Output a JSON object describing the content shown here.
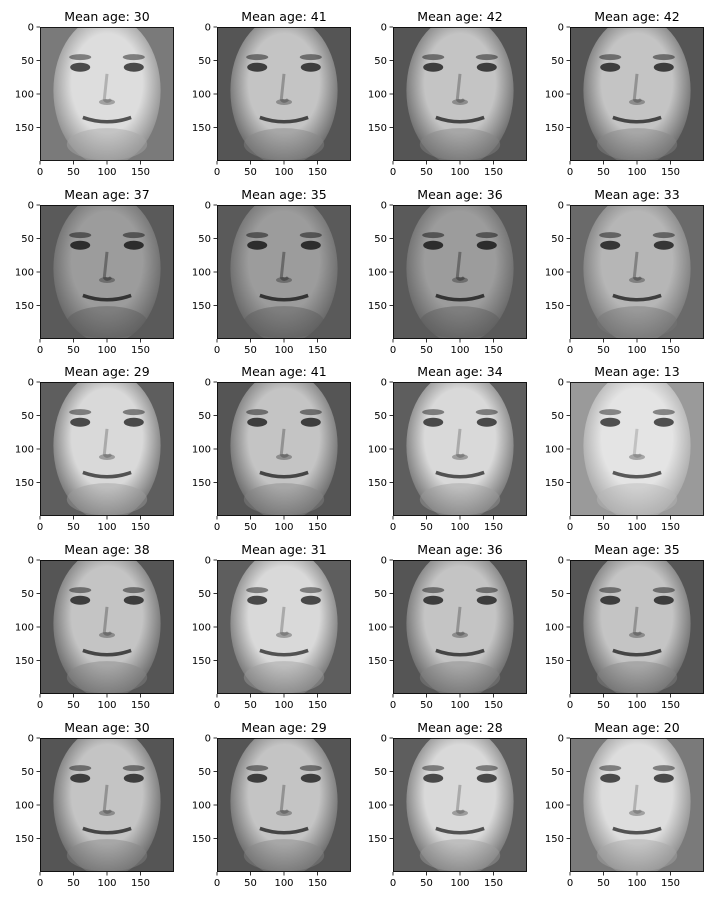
{
  "figure_title": "",
  "chart_data": [
    {
      "type": "image",
      "title": "Mean age: 30",
      "value": 30,
      "tone": "light-smile",
      "xticks": [
        0,
        50,
        100,
        150
      ],
      "yticks": [
        0,
        50,
        100,
        150
      ],
      "xlim": [
        0,
        200
      ],
      "ylim": [
        200,
        0
      ],
      "xlabel": "",
      "ylabel": "",
      "grid": false
    },
    {
      "type": "image",
      "title": "Mean age: 41",
      "value": 41,
      "tone": "mid",
      "xticks": [
        0,
        50,
        100,
        150
      ],
      "yticks": [
        0,
        50,
        100,
        150
      ],
      "xlim": [
        0,
        200
      ],
      "ylim": [
        200,
        0
      ],
      "xlabel": "",
      "ylabel": "",
      "grid": false
    },
    {
      "type": "image",
      "title": "Mean age: 42",
      "value": 42,
      "tone": "mid",
      "xticks": [
        0,
        50,
        100,
        150
      ],
      "yticks": [
        0,
        50,
        100,
        150
      ],
      "xlim": [
        0,
        200
      ],
      "ylim": [
        200,
        0
      ],
      "xlabel": "",
      "ylabel": "",
      "grid": false
    },
    {
      "type": "image",
      "title": "Mean age: 42",
      "value": 42,
      "tone": "mid",
      "xticks": [
        0,
        50,
        100,
        150
      ],
      "yticks": [
        0,
        50,
        100,
        150
      ],
      "xlim": [
        0,
        200
      ],
      "ylim": [
        200,
        0
      ],
      "xlabel": "",
      "ylabel": "",
      "grid": false
    },
    {
      "type": "image",
      "title": "Mean age: 37",
      "value": 37,
      "tone": "dark",
      "xticks": [
        0,
        50,
        100,
        150
      ],
      "yticks": [
        0,
        50,
        100,
        150
      ],
      "xlim": [
        0,
        200
      ],
      "ylim": [
        200,
        0
      ],
      "xlabel": "",
      "ylabel": "",
      "grid": false
    },
    {
      "type": "image",
      "title": "Mean age: 35",
      "value": 35,
      "tone": "dark",
      "xticks": [
        0,
        50,
        100,
        150
      ],
      "yticks": [
        0,
        50,
        100,
        150
      ],
      "xlim": [
        0,
        200
      ],
      "ylim": [
        200,
        0
      ],
      "xlabel": "",
      "ylabel": "",
      "grid": false
    },
    {
      "type": "image",
      "title": "Mean age: 36",
      "value": 36,
      "tone": "dark",
      "xticks": [
        0,
        50,
        100,
        150
      ],
      "yticks": [
        0,
        50,
        100,
        150
      ],
      "xlim": [
        0,
        200
      ],
      "ylim": [
        200,
        0
      ],
      "xlabel": "",
      "ylabel": "",
      "grid": false
    },
    {
      "type": "image",
      "title": "Mean age: 33",
      "value": 33,
      "tone": "mid-dark",
      "xticks": [
        0,
        50,
        100,
        150
      ],
      "yticks": [
        0,
        50,
        100,
        150
      ],
      "xlim": [
        0,
        200
      ],
      "ylim": [
        200,
        0
      ],
      "xlabel": "",
      "ylabel": "",
      "grid": false
    },
    {
      "type": "image",
      "title": "Mean age: 29",
      "value": 29,
      "tone": "light",
      "xticks": [
        0,
        50,
        100,
        150
      ],
      "yticks": [
        0,
        50,
        100,
        150
      ],
      "xlim": [
        0,
        200
      ],
      "ylim": [
        200,
        0
      ],
      "xlabel": "",
      "ylabel": "",
      "grid": false
    },
    {
      "type": "image",
      "title": "Mean age: 41",
      "value": 41,
      "tone": "mid",
      "xticks": [
        0,
        50,
        100,
        150
      ],
      "yticks": [
        0,
        50,
        100,
        150
      ],
      "xlim": [
        0,
        200
      ],
      "ylim": [
        200,
        0
      ],
      "xlabel": "",
      "ylabel": "",
      "grid": false
    },
    {
      "type": "image",
      "title": "Mean age: 34",
      "value": 34,
      "tone": "light",
      "xticks": [
        0,
        50,
        100,
        150
      ],
      "yticks": [
        0,
        50,
        100,
        150
      ],
      "xlim": [
        0,
        200
      ],
      "ylim": [
        200,
        0
      ],
      "xlabel": "",
      "ylabel": "",
      "grid": false
    },
    {
      "type": "image",
      "title": "Mean age: 13",
      "value": 13,
      "tone": "very-light",
      "xticks": [
        0,
        50,
        100,
        150
      ],
      "yticks": [
        0,
        50,
        100,
        150
      ],
      "xlim": [
        0,
        200
      ],
      "ylim": [
        200,
        0
      ],
      "xlabel": "",
      "ylabel": "",
      "grid": false
    },
    {
      "type": "image",
      "title": "Mean age: 38",
      "value": 38,
      "tone": "mid",
      "xticks": [
        0,
        50,
        100,
        150
      ],
      "yticks": [
        0,
        50,
        100,
        150
      ],
      "xlim": [
        0,
        200
      ],
      "ylim": [
        200,
        0
      ],
      "xlabel": "",
      "ylabel": "",
      "grid": false
    },
    {
      "type": "image",
      "title": "Mean age: 31",
      "value": 31,
      "tone": "light",
      "xticks": [
        0,
        50,
        100,
        150
      ],
      "yticks": [
        0,
        50,
        100,
        150
      ],
      "xlim": [
        0,
        200
      ],
      "ylim": [
        200,
        0
      ],
      "xlabel": "",
      "ylabel": "",
      "grid": false
    },
    {
      "type": "image",
      "title": "Mean age: 36",
      "value": 36,
      "tone": "mid",
      "xticks": [
        0,
        50,
        100,
        150
      ],
      "yticks": [
        0,
        50,
        100,
        150
      ],
      "xlim": [
        0,
        200
      ],
      "ylim": [
        200,
        0
      ],
      "xlabel": "",
      "ylabel": "",
      "grid": false
    },
    {
      "type": "image",
      "title": "Mean age: 35",
      "value": 35,
      "tone": "mid",
      "xticks": [
        0,
        50,
        100,
        150
      ],
      "yticks": [
        0,
        50,
        100,
        150
      ],
      "xlim": [
        0,
        200
      ],
      "ylim": [
        200,
        0
      ],
      "xlabel": "",
      "ylabel": "",
      "grid": false
    },
    {
      "type": "image",
      "title": "Mean age: 30",
      "value": 30,
      "tone": "mid",
      "xticks": [
        0,
        50,
        100,
        150
      ],
      "yticks": [
        0,
        50,
        100,
        150
      ],
      "xlim": [
        0,
        200
      ],
      "ylim": [
        200,
        0
      ],
      "xlabel": "",
      "ylabel": "",
      "grid": false
    },
    {
      "type": "image",
      "title": "Mean age: 29",
      "value": 29,
      "tone": "mid",
      "xticks": [
        0,
        50,
        100,
        150
      ],
      "yticks": [
        0,
        50,
        100,
        150
      ],
      "xlim": [
        0,
        200
      ],
      "ylim": [
        200,
        0
      ],
      "xlabel": "",
      "ylabel": "",
      "grid": false
    },
    {
      "type": "image",
      "title": "Mean age: 28",
      "value": 28,
      "tone": "light",
      "xticks": [
        0,
        50,
        100,
        150
      ],
      "yticks": [
        0,
        50,
        100,
        150
      ],
      "xlim": [
        0,
        200
      ],
      "ylim": [
        200,
        0
      ],
      "xlabel": "",
      "ylabel": "",
      "grid": false
    },
    {
      "type": "image",
      "title": "Mean age: 20",
      "value": 20,
      "tone": "light-smile",
      "xticks": [
        0,
        50,
        100,
        150
      ],
      "yticks": [
        0,
        50,
        100,
        150
      ],
      "xlim": [
        0,
        200
      ],
      "ylim": [
        200,
        0
      ],
      "xlabel": "",
      "ylabel": "",
      "grid": false
    }
  ],
  "tones": {
    "very-light": {
      "skin": "#e4e4e4",
      "bg": "#9a9a9a",
      "feature": "#353535",
      "shadow": "#b8b8b8"
    },
    "light": {
      "skin": "#d9d9d9",
      "bg": "#5e5e5e",
      "feature": "#2f2f2f",
      "shadow": "#9d9d9d"
    },
    "light-smile": {
      "skin": "#dddddd",
      "bg": "#7a7a7a",
      "feature": "#303030",
      "shadow": "#a6a6a6"
    },
    "mid": {
      "skin": "#c4c4c4",
      "bg": "#555555",
      "feature": "#262626",
      "shadow": "#868686"
    },
    "mid-dark": {
      "skin": "#b6b6b6",
      "bg": "#6a6a6a",
      "feature": "#202020",
      "shadow": "#767676"
    },
    "dark": {
      "skin": "#9c9c9c",
      "bg": "#5a5a5a",
      "feature": "#1a1a1a",
      "shadow": "#5c5c5c"
    }
  }
}
